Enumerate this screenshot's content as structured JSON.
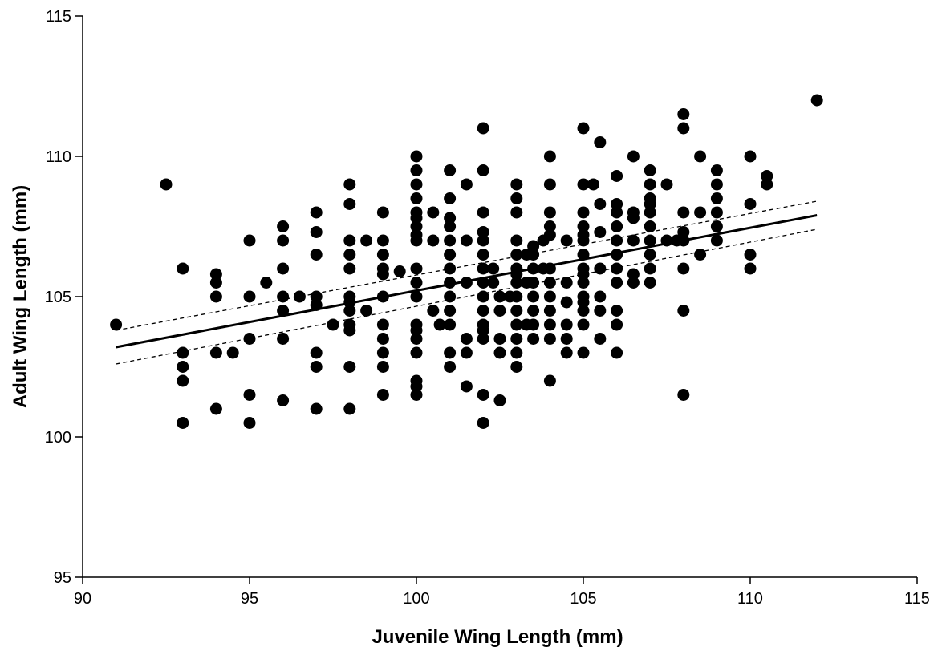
{
  "chart_data": {
    "type": "scatter",
    "title": "",
    "xlabel": "Juvenile Wing Length (mm)",
    "ylabel": "Adult Wing Length (mm)",
    "xlim": [
      90,
      115
    ],
    "ylim": [
      95,
      115
    ],
    "xticks": [
      90,
      95,
      100,
      105,
      110,
      115
    ],
    "yticks": [
      95,
      100,
      105,
      110,
      115
    ],
    "grid": false,
    "legend": "none",
    "marker_color": "#000000",
    "series": [
      {
        "points": [
          [
            91,
            104
          ],
          [
            92.5,
            109
          ],
          [
            93,
            106
          ],
          [
            93,
            103
          ],
          [
            93,
            102.5
          ],
          [
            93,
            102
          ],
          [
            93,
            100.5
          ],
          [
            94,
            105.8
          ],
          [
            94,
            105.5
          ],
          [
            94,
            105
          ],
          [
            94,
            103
          ],
          [
            94,
            101
          ],
          [
            94.5,
            103
          ],
          [
            95,
            107
          ],
          [
            95,
            105
          ],
          [
            95,
            103.5
          ],
          [
            95,
            101.5
          ],
          [
            95,
            100.5
          ],
          [
            95.5,
            105.5
          ],
          [
            96,
            107.5
          ],
          [
            96,
            107
          ],
          [
            96,
            106
          ],
          [
            96,
            105
          ],
          [
            96,
            104.5
          ],
          [
            96,
            103.5
          ],
          [
            96,
            101.3
          ],
          [
            96.5,
            105
          ],
          [
            97,
            108
          ],
          [
            97,
            107.3
          ],
          [
            97,
            106.5
          ],
          [
            97,
            105
          ],
          [
            97,
            104.7
          ],
          [
            97,
            103
          ],
          [
            97,
            102.5
          ],
          [
            97,
            101
          ],
          [
            97.5,
            104
          ],
          [
            98,
            109
          ],
          [
            98,
            108.3
          ],
          [
            98,
            107
          ],
          [
            98,
            106.5
          ],
          [
            98,
            106
          ],
          [
            98,
            105
          ],
          [
            98,
            104.8
          ],
          [
            98,
            104.5
          ],
          [
            98,
            104
          ],
          [
            98,
            103.8
          ],
          [
            98,
            102.5
          ],
          [
            98,
            101
          ],
          [
            98.5,
            107
          ],
          [
            98.5,
            104.5
          ],
          [
            99,
            108
          ],
          [
            99,
            107
          ],
          [
            99,
            106.5
          ],
          [
            99,
            106
          ],
          [
            99,
            105.8
          ],
          [
            99,
            105
          ],
          [
            99,
            104
          ],
          [
            99,
            103.5
          ],
          [
            99,
            103
          ],
          [
            99,
            102.5
          ],
          [
            99,
            101.5
          ],
          [
            99.5,
            105.9
          ],
          [
            100,
            110
          ],
          [
            100,
            109.5
          ],
          [
            100,
            109
          ],
          [
            100,
            108.5
          ],
          [
            100,
            108
          ],
          [
            100,
            107.8
          ],
          [
            100,
            107.5
          ],
          [
            100,
            107.2
          ],
          [
            100,
            107
          ],
          [
            100,
            106
          ],
          [
            100,
            105.5
          ],
          [
            100,
            105
          ],
          [
            100,
            104
          ],
          [
            100,
            103.8
          ],
          [
            100,
            103.5
          ],
          [
            100,
            103
          ],
          [
            100,
            102
          ],
          [
            100,
            101.8
          ],
          [
            100,
            101.5
          ],
          [
            100.5,
            108
          ],
          [
            100.5,
            107
          ],
          [
            100.5,
            104.5
          ],
          [
            100.7,
            104
          ],
          [
            101,
            109.5
          ],
          [
            101,
            108.5
          ],
          [
            101,
            107.8
          ],
          [
            101,
            107.5
          ],
          [
            101,
            107
          ],
          [
            101,
            106.5
          ],
          [
            101,
            106
          ],
          [
            101,
            105.5
          ],
          [
            101,
            105
          ],
          [
            101,
            104.5
          ],
          [
            101,
            104
          ],
          [
            101,
            103
          ],
          [
            101,
            102.5
          ],
          [
            101.5,
            109
          ],
          [
            101.5,
            107
          ],
          [
            101.5,
            105.5
          ],
          [
            101.5,
            103.5
          ],
          [
            101.5,
            103
          ],
          [
            101.5,
            101.8
          ],
          [
            102,
            111
          ],
          [
            102,
            109.5
          ],
          [
            102,
            108
          ],
          [
            102,
            107.3
          ],
          [
            102,
            107
          ],
          [
            102,
            106.5
          ],
          [
            102,
            106
          ],
          [
            102,
            105.5
          ],
          [
            102,
            105
          ],
          [
            102,
            104.5
          ],
          [
            102,
            104
          ],
          [
            102,
            103.8
          ],
          [
            102,
            103.5
          ],
          [
            102,
            101.5
          ],
          [
            102,
            100.5
          ],
          [
            102.3,
            106
          ],
          [
            102.3,
            105.5
          ],
          [
            102.5,
            105
          ],
          [
            102.5,
            104.5
          ],
          [
            102.5,
            103.5
          ],
          [
            102.5,
            103
          ],
          [
            102.5,
            101.3
          ],
          [
            102.8,
            105
          ],
          [
            103,
            109
          ],
          [
            103,
            108.5
          ],
          [
            103,
            108
          ],
          [
            103,
            107
          ],
          [
            103,
            106.5
          ],
          [
            103,
            106
          ],
          [
            103,
            105.8
          ],
          [
            103,
            105.5
          ],
          [
            103,
            105
          ],
          [
            103,
            104.5
          ],
          [
            103,
            104
          ],
          [
            103,
            103.5
          ],
          [
            103,
            103
          ],
          [
            103,
            102.5
          ],
          [
            103.3,
            106.5
          ],
          [
            103.3,
            105.5
          ],
          [
            103.3,
            104
          ],
          [
            103.5,
            106.8
          ],
          [
            103.5,
            106.5
          ],
          [
            103.5,
            106
          ],
          [
            103.5,
            105.5
          ],
          [
            103.5,
            105
          ],
          [
            103.5,
            104.5
          ],
          [
            103.5,
            104
          ],
          [
            103.5,
            103.5
          ],
          [
            103.8,
            107
          ],
          [
            103.8,
            106
          ],
          [
            104,
            110
          ],
          [
            104,
            109
          ],
          [
            104,
            108
          ],
          [
            104,
            107.5
          ],
          [
            104,
            107.2
          ],
          [
            104,
            106
          ],
          [
            104,
            105.5
          ],
          [
            104,
            105
          ],
          [
            104,
            104.5
          ],
          [
            104,
            104
          ],
          [
            104,
            103.5
          ],
          [
            104,
            102
          ],
          [
            104.5,
            107
          ],
          [
            104.5,
            105.5
          ],
          [
            104.5,
            104.8
          ],
          [
            104.5,
            104
          ],
          [
            104.5,
            103.5
          ],
          [
            104.5,
            103
          ],
          [
            105,
            111
          ],
          [
            105,
            109
          ],
          [
            105,
            108
          ],
          [
            105,
            107.5
          ],
          [
            105,
            107.2
          ],
          [
            105,
            107
          ],
          [
            105,
            106.5
          ],
          [
            105,
            106
          ],
          [
            105,
            105.8
          ],
          [
            105,
            105.5
          ],
          [
            105,
            105
          ],
          [
            105,
            104.8
          ],
          [
            105,
            104.5
          ],
          [
            105,
            104
          ],
          [
            105,
            103
          ],
          [
            105.3,
            109
          ],
          [
            105.5,
            110.5
          ],
          [
            105.5,
            108.3
          ],
          [
            105.5,
            107.3
          ],
          [
            105.5,
            106
          ],
          [
            105.5,
            105
          ],
          [
            105.5,
            104.5
          ],
          [
            105.5,
            103.5
          ],
          [
            106,
            109.3
          ],
          [
            106,
            108.3
          ],
          [
            106,
            108
          ],
          [
            106,
            107.5
          ],
          [
            106,
            107
          ],
          [
            106,
            106.5
          ],
          [
            106,
            106
          ],
          [
            106,
            105.5
          ],
          [
            106,
            104.5
          ],
          [
            106,
            104
          ],
          [
            106,
            103
          ],
          [
            106.5,
            110
          ],
          [
            106.5,
            108
          ],
          [
            106.5,
            107.8
          ],
          [
            106.5,
            107
          ],
          [
            106.5,
            105.8
          ],
          [
            106.5,
            105.5
          ],
          [
            107,
            109.5
          ],
          [
            107,
            109
          ],
          [
            107,
            108.5
          ],
          [
            107,
            108.3
          ],
          [
            107,
            108
          ],
          [
            107,
            107.5
          ],
          [
            107,
            107
          ],
          [
            107,
            106.5
          ],
          [
            107,
            106
          ],
          [
            107,
            105.5
          ],
          [
            107.5,
            109
          ],
          [
            107.5,
            107
          ],
          [
            107.8,
            107
          ],
          [
            108,
            111.5
          ],
          [
            108,
            111
          ],
          [
            108,
            108
          ],
          [
            108,
            107.3
          ],
          [
            108,
            107
          ],
          [
            108,
            106
          ],
          [
            108,
            104.5
          ],
          [
            108,
            101.5
          ],
          [
            108.5,
            110
          ],
          [
            108.5,
            108
          ],
          [
            108.5,
            106.5
          ],
          [
            109,
            109.5
          ],
          [
            109,
            109
          ],
          [
            109,
            108.5
          ],
          [
            109,
            108
          ],
          [
            109,
            107.5
          ],
          [
            109,
            107
          ],
          [
            110,
            110
          ],
          [
            110,
            108.3
          ],
          [
            110,
            106.5
          ],
          [
            110,
            106
          ],
          [
            110.5,
            109.3
          ],
          [
            110.5,
            109
          ],
          [
            112,
            112
          ]
        ]
      }
    ],
    "fit": {
      "line": {
        "x": [
          91,
          112
        ],
        "y": [
          103.2,
          107.9
        ]
      },
      "ci_upper": {
        "x": [
          91,
          112
        ],
        "y": [
          103.8,
          108.4
        ]
      },
      "ci_lower": {
        "x": [
          91,
          112
        ],
        "y": [
          102.6,
          107.4
        ]
      }
    }
  }
}
